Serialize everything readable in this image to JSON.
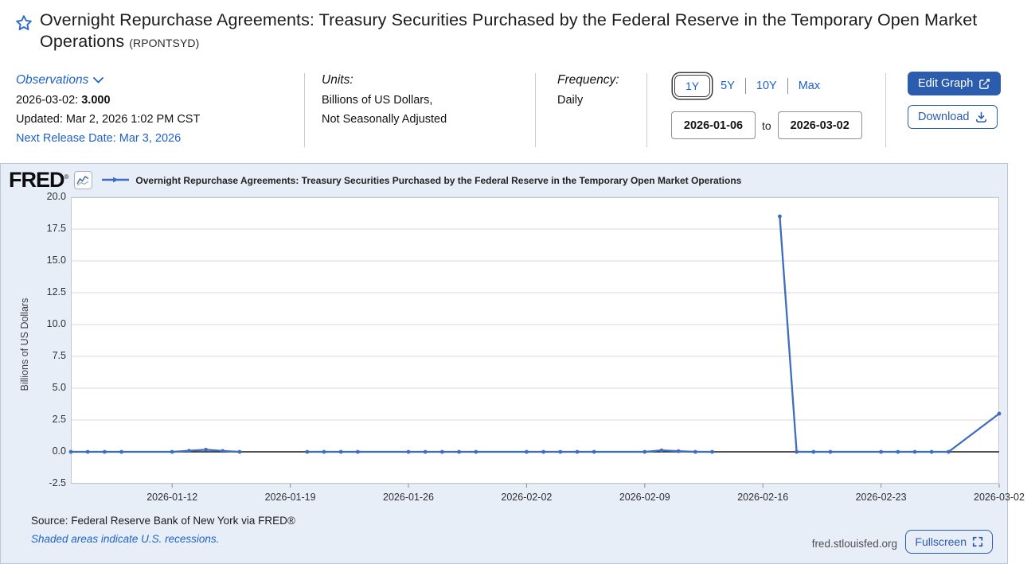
{
  "header": {
    "title": "Overnight Repurchase Agreements: Treasury Securities Purchased by the Federal Reserve in the Temporary Open Market Operations",
    "ticker": "(RPONTSYD)"
  },
  "meta": {
    "observations": {
      "label": "Observations",
      "latest_date": "2026-03-02:",
      "latest_value": "3.000",
      "updated": "Updated: Mar 2, 2026 1:02 PM CST",
      "next_release": "Next Release Date: Mar 3, 2026"
    },
    "units": {
      "label": "Units:",
      "line1": "Billions of US Dollars,",
      "line2": "Not Seasonally Adjusted"
    },
    "frequency": {
      "label": "Frequency:",
      "value": "Daily"
    },
    "range": {
      "selected": "1Y",
      "btn_1y": "1Y",
      "btn_5y": "5Y",
      "btn_10y": "10Y",
      "btn_max": "Max",
      "start_date": "2026-01-06",
      "to_label": "to",
      "end_date": "2026-03-02"
    },
    "actions": {
      "edit_graph": "Edit Graph",
      "download": "Download"
    }
  },
  "chart_panel": {
    "logo": "FRED",
    "logo_reg": "®",
    "legend_label": "Overnight Repurchase Agreements: Treasury Securities Purchased by the Federal Reserve in the Temporary Open Market Operations",
    "source": "Source: Federal Reserve Bank of New York via FRED®",
    "recessions_note": "Shaded areas indicate U.S. recessions.",
    "watermark": "fred.stlouisfed.org",
    "fullscreen_label": "Fullscreen"
  },
  "colors": {
    "line_blue": "#3e6dbf",
    "link_blue": "#1f62c4",
    "button_blue": "#2b5cad",
    "panel_bg": "#e8eef8",
    "grid_gray": "#d9d9d9",
    "zero_line": "#1b1b1b"
  },
  "chart_data": {
    "type": "line",
    "title": "Overnight Repurchase Agreements: Treasury Securities Purchased by the Federal Reserve in the Temporary Open Market Operations",
    "xlabel": "",
    "ylabel": "Billions of US Dollars",
    "ylim": [
      -2.5,
      20.0
    ],
    "x_range": [
      "2026-01-06",
      "2026-03-02"
    ],
    "y_ticks": [
      20.0,
      17.5,
      15.0,
      12.5,
      10.0,
      7.5,
      5.0,
      2.5,
      0.0,
      -2.5
    ],
    "x_ticks": [
      "2026-01-12",
      "2026-01-19",
      "2026-01-26",
      "2026-02-02",
      "2026-02-09",
      "2026-02-16",
      "2026-02-23",
      "2026-03-02"
    ],
    "grid": true,
    "legend_position": "top",
    "series": [
      {
        "name": "RPONTSYD",
        "color": "#3e6dbf",
        "segments": [
          [
            [
              "2026-01-06",
              0.0
            ],
            [
              "2026-01-07",
              0.0
            ],
            [
              "2026-01-08",
              0.0
            ],
            [
              "2026-01-09",
              0.0
            ],
            [
              "2026-01-12",
              0.0
            ],
            [
              "2026-01-13",
              0.08
            ],
            [
              "2026-01-14",
              0.17
            ],
            [
              "2026-01-15",
              0.07
            ],
            [
              "2026-01-16",
              0.0
            ]
          ],
          [
            [
              "2026-01-20",
              0.0
            ],
            [
              "2026-01-21",
              0.0
            ],
            [
              "2026-01-22",
              0.0
            ],
            [
              "2026-01-23",
              0.0
            ],
            [
              "2026-01-26",
              0.0
            ],
            [
              "2026-01-27",
              0.0
            ],
            [
              "2026-01-28",
              0.0
            ],
            [
              "2026-01-29",
              0.0
            ],
            [
              "2026-01-30",
              0.0
            ],
            [
              "2026-02-02",
              0.0
            ],
            [
              "2026-02-03",
              0.0
            ],
            [
              "2026-02-04",
              0.0
            ],
            [
              "2026-02-05",
              0.0
            ],
            [
              "2026-02-06",
              0.0
            ],
            [
              "2026-02-09",
              0.0
            ],
            [
              "2026-02-10",
              0.12
            ],
            [
              "2026-02-11",
              0.05
            ],
            [
              "2026-02-12",
              0.0
            ],
            [
              "2026-02-13",
              0.0
            ]
          ],
          [
            [
              "2026-02-17",
              18.5
            ],
            [
              "2026-02-18",
              0.0
            ],
            [
              "2026-02-19",
              0.0
            ],
            [
              "2026-02-20",
              0.0
            ],
            [
              "2026-02-23",
              0.0
            ],
            [
              "2026-02-24",
              0.0
            ],
            [
              "2026-02-25",
              0.0
            ],
            [
              "2026-02-26",
              0.0
            ],
            [
              "2026-02-27",
              0.0
            ],
            [
              "2026-03-02",
              3.0
            ]
          ]
        ]
      }
    ]
  }
}
